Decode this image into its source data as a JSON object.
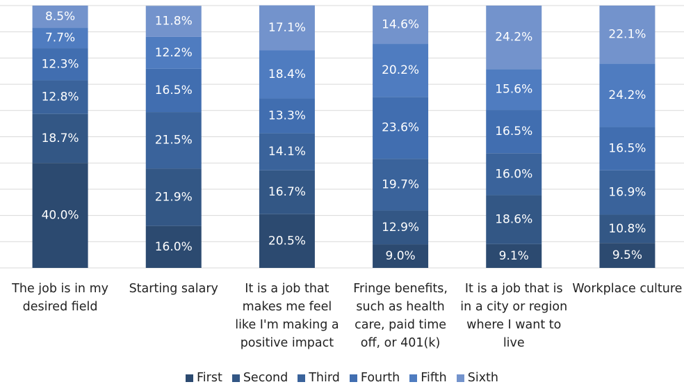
{
  "chart_data": {
    "type": "stacked_bar",
    "categories": [
      "The job is in my desired field",
      "Starting salary",
      "It is a job that makes me feel like I'm making a positive impact",
      "Fringe benefits, such as health care, paid time off, or 401(k)",
      "It is a job that is in a city or region where I want to live",
      "Workplace culture"
    ],
    "series": [
      {
        "name": "First",
        "color": "#2c4a70",
        "values": [
          40.0,
          16.0,
          20.5,
          9.0,
          9.1,
          9.5
        ],
        "value_labels": [
          "40.0%",
          "16.0%",
          "20.5%",
          "9.0%",
          "9.1%",
          "9.5%"
        ]
      },
      {
        "name": "Second",
        "color": "#335785",
        "values": [
          18.7,
          21.9,
          16.7,
          12.9,
          18.6,
          10.8
        ],
        "value_labels": [
          "18.7%",
          "21.9%",
          "16.7%",
          "12.9%",
          "18.6%",
          "10.8%"
        ]
      },
      {
        "name": "Third",
        "color": "#3a639b",
        "values": [
          12.8,
          21.5,
          14.1,
          19.7,
          16.0,
          16.9
        ],
        "value_labels": [
          "12.8%",
          "21.5%",
          "14.1%",
          "19.7%",
          "16.0%",
          "16.9%"
        ]
      },
      {
        "name": "Fourth",
        "color": "#416eb0",
        "values": [
          12.3,
          16.5,
          13.3,
          23.6,
          16.5,
          16.5
        ],
        "value_labels": [
          "12.3%",
          "16.5%",
          "13.3%",
          "23.6%",
          "16.5%",
          "16.5%"
        ]
      },
      {
        "name": "Fifth",
        "color": "#4f7cc0",
        "values": [
          7.7,
          12.2,
          18.4,
          20.2,
          15.6,
          24.2
        ],
        "value_labels": [
          "7.7%",
          "12.2%",
          "18.4%",
          "20.2%",
          "15.6%",
          "24.2%"
        ]
      },
      {
        "name": "Sixth",
        "color": "#7393cc",
        "values": [
          8.5,
          11.8,
          17.1,
          14.6,
          24.2,
          22.1
        ],
        "value_labels": [
          "8.5%",
          "11.8%",
          "17.1%",
          "14.6%",
          "24.2%",
          "22.1%"
        ]
      }
    ],
    "ylim": [
      0,
      100
    ],
    "yticks": [
      0,
      10,
      20,
      30,
      40,
      50,
      60,
      70,
      80,
      90,
      100
    ],
    "grid": true,
    "legend": "bottom"
  }
}
